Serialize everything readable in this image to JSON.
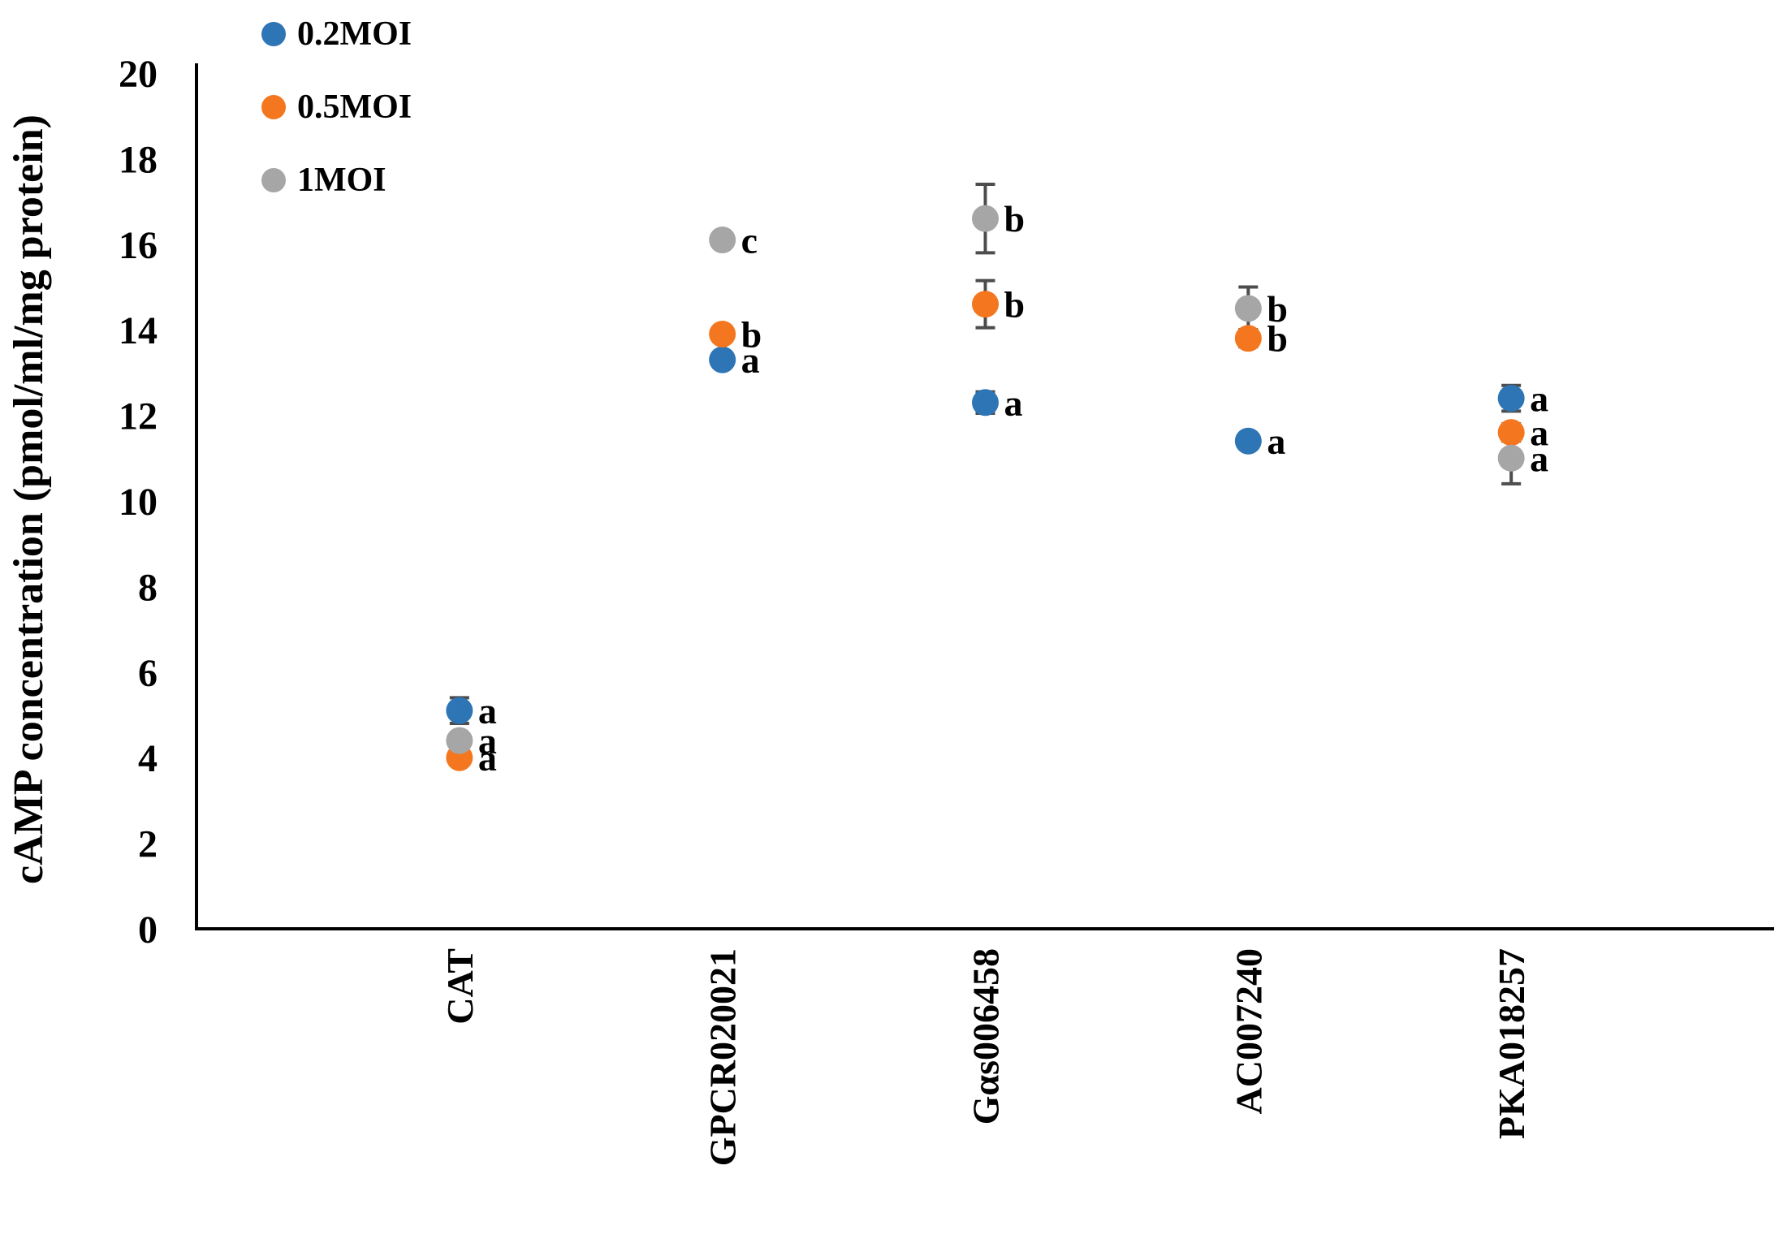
{
  "chart_data": {
    "type": "scatter",
    "title": "",
    "ylabel": "cAMP concentration (pmol/ml/mg protein)",
    "xlabel": "",
    "ylim": [
      0,
      20
    ],
    "ytick_step": 2,
    "ytick_labels": [
      "0",
      "2",
      "4",
      "6",
      "8",
      "10",
      "12",
      "14",
      "16",
      "18",
      "20"
    ],
    "grid": false,
    "legend_position": "top-left",
    "categories": [
      "CAT",
      "GPCR020021",
      "Gαs006458",
      "AC007240",
      "PKA018257"
    ],
    "series": [
      {
        "name": "0.2MOI",
        "color": "#2E75B6",
        "values": [
          5.1,
          13.3,
          12.3,
          11.4,
          12.4
        ],
        "errors": [
          0.3,
          0.1,
          0.25,
          0.1,
          0.3
        ],
        "sig_letters": [
          "a",
          "a",
          "a",
          "a",
          "a"
        ]
      },
      {
        "name": "0.5MOI",
        "color": "#F4771F",
        "values": [
          4.0,
          13.9,
          14.6,
          13.8,
          11.6
        ],
        "errors": [
          0.1,
          0.15,
          0.55,
          0.2,
          0.2
        ],
        "sig_letters": [
          "a",
          "b",
          "b",
          "b",
          "a"
        ]
      },
      {
        "name": "1MOI",
        "color": "#A6A6A6",
        "values": [
          4.4,
          16.1,
          16.6,
          14.5,
          11.0
        ],
        "errors": [
          0.1,
          0.1,
          0.8,
          0.5,
          0.6
        ],
        "sig_letters": [
          "a",
          "c",
          "b",
          "b",
          "a"
        ]
      }
    ],
    "error_bar_color": "#4D4D4D",
    "axis_color": "#000000"
  }
}
